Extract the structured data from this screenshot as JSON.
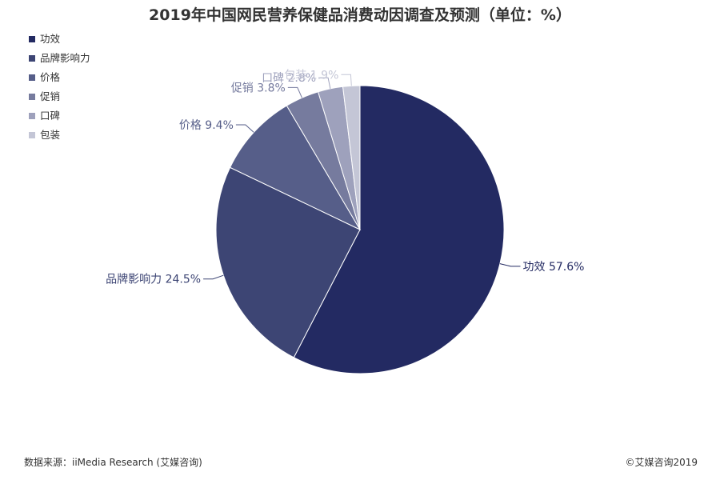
{
  "chart_data": {
    "type": "pie",
    "title": "2019年中国网民营养保健品消费动因调查及预测（单位：%）",
    "unit": "%",
    "legend_position": "top-left",
    "categories": [
      "功效",
      "品牌影响力",
      "价格",
      "促销",
      "口碑",
      "包装"
    ],
    "values": [
      57.6,
      24.5,
      9.4,
      3.8,
      2.8,
      1.9
    ],
    "colors": [
      "#232a62",
      "#3d4574",
      "#565e89",
      "#767b9e",
      "#9ea1bc",
      "#c4c6d6"
    ],
    "label_colors": [
      "#232a62",
      "#3d4574",
      "#565e89",
      "#767b9e",
      "#9ea1bc",
      "#c4c6d6"
    ]
  },
  "footer": {
    "source": "数据来源：iiMedia Research (艾媒咨询)",
    "copyright": "©艾媒咨询2019"
  }
}
